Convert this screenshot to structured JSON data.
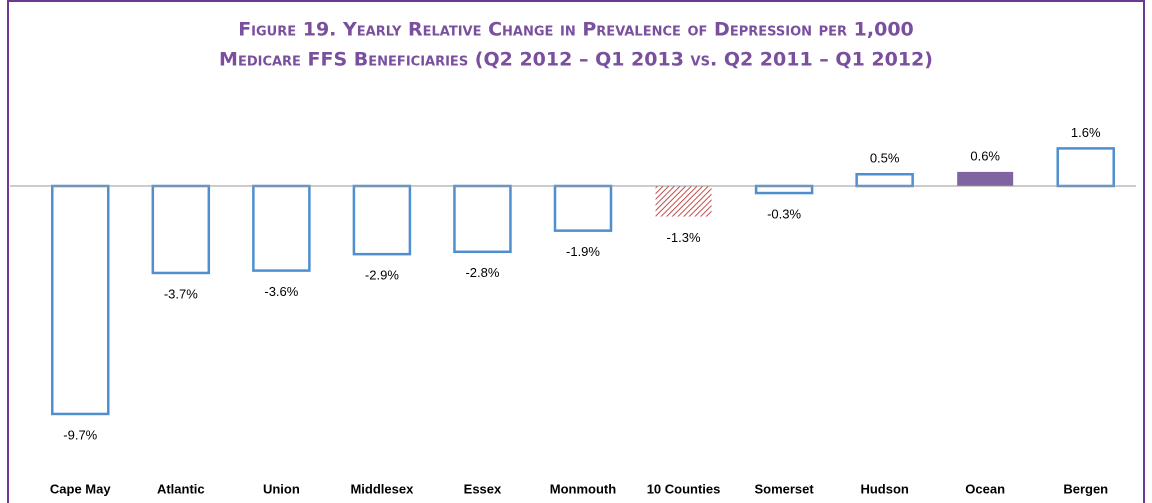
{
  "chart_data": {
    "type": "bar",
    "title": [
      "Figure 19. Yearly Relative Change in Prevalence of Depression per 1,000",
      "Medicare FFS Beneficiaries (Q2 2012 – Q1 2013 vs. Q2 2011 – Q1 2012)"
    ],
    "categories": [
      "Cape May",
      "Atlantic",
      "Union",
      "Middlesex",
      "Essex",
      "Monmouth",
      "10 Counties",
      "Somerset",
      "Hudson",
      "Ocean",
      "Bergen"
    ],
    "values": [
      -9.7,
      -3.7,
      -3.6,
      -2.9,
      -2.8,
      -1.9,
      -1.3,
      -0.3,
      0.5,
      0.6,
      1.6
    ],
    "value_labels": [
      "-9.7%",
      "-3.7%",
      "-3.6%",
      "-2.9%",
      "-2.8%",
      "-1.9%",
      "-1.3%",
      "-0.3%",
      "0.5%",
      "0.6%",
      "1.6%"
    ],
    "colors": [
      "#4f8fcf",
      "#4f8fcf",
      "#4f8fcf",
      "#4f8fcf",
      "#4f8fcf",
      "#4f8fcf",
      "#c0504d",
      "#4f8fcf",
      "#4f8fcf",
      "#8064a2",
      "#4f8fcf"
    ],
    "fill_styles": [
      "outline",
      "outline",
      "outline",
      "outline",
      "outline",
      "outline",
      "hatch",
      "outline",
      "outline",
      "solid",
      "outline"
    ],
    "ylim": [
      -10,
      4
    ]
  }
}
